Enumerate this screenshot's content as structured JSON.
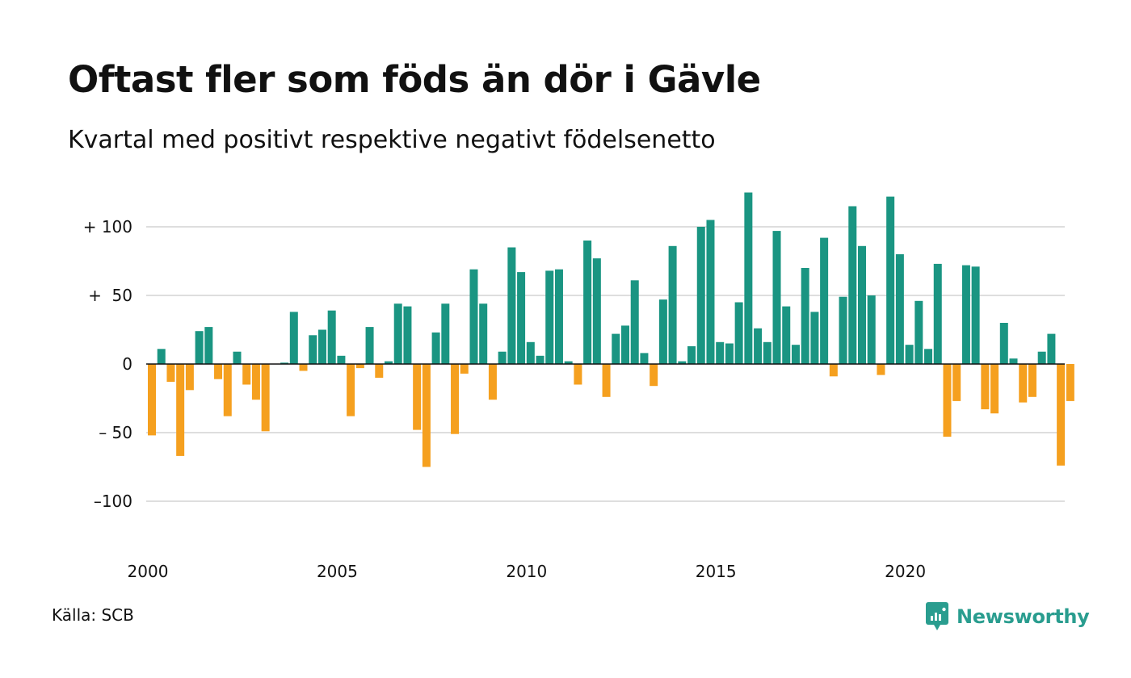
{
  "title": "Oftast fler som föds än dör i Gävle",
  "subtitle": "Kvartal med positivt respektive negativt födelsenetto",
  "source": "Källa: SCB",
  "brand": "Newsworthy",
  "colors": {
    "positive": "#1a9582",
    "negative": "#f5a01f",
    "grid": "#dedede",
    "brand": "#2a9d8f"
  },
  "chart_data": {
    "type": "bar",
    "ylim": [
      -130,
      130
    ],
    "yticks": [
      {
        "value": 100,
        "label": "+ 100"
      },
      {
        "value": 50,
        "label": "+  50"
      },
      {
        "value": 0,
        "label": "0"
      },
      {
        "value": -50,
        "label": "– 50"
      },
      {
        "value": -100,
        "label": "–100"
      }
    ],
    "xticks": [
      "2000",
      "2005",
      "2010",
      "2015",
      "2020"
    ],
    "start_year": 2000,
    "x": [
      "2000 Q1",
      "2000 Q2",
      "2000 Q3",
      "2000 Q4",
      "2001 Q1",
      "2001 Q2",
      "2001 Q3",
      "2001 Q4",
      "2002 Q1",
      "2002 Q2",
      "2002 Q3",
      "2002 Q4",
      "2003 Q1",
      "2003 Q2",
      "2003 Q3",
      "2003 Q4",
      "2004 Q1",
      "2004 Q2",
      "2004 Q3",
      "2004 Q4",
      "2005 Q1",
      "2005 Q2",
      "2005 Q3",
      "2005 Q4",
      "2006 Q1",
      "2006 Q2",
      "2006 Q3",
      "2006 Q4",
      "2007 Q1",
      "2007 Q2",
      "2007 Q3",
      "2007 Q4",
      "2008 Q1",
      "2008 Q2",
      "2008 Q3",
      "2008 Q4",
      "2009 Q1",
      "2009 Q2",
      "2009 Q3",
      "2009 Q4",
      "2010 Q1",
      "2010 Q2",
      "2010 Q3",
      "2010 Q4",
      "2011 Q1",
      "2011 Q2",
      "2011 Q3",
      "2011 Q4",
      "2012 Q1",
      "2012 Q2",
      "2012 Q3",
      "2012 Q4",
      "2013 Q1",
      "2013 Q2",
      "2013 Q3",
      "2013 Q4",
      "2014 Q1",
      "2014 Q2",
      "2014 Q3",
      "2014 Q4",
      "2015 Q1",
      "2015 Q2",
      "2015 Q3",
      "2015 Q4",
      "2016 Q1",
      "2016 Q2",
      "2016 Q3",
      "2016 Q4",
      "2017 Q1",
      "2017 Q2",
      "2017 Q3",
      "2017 Q4",
      "2018 Q1",
      "2018 Q2",
      "2018 Q3",
      "2018 Q4",
      "2019 Q1",
      "2019 Q2",
      "2019 Q3",
      "2019 Q4",
      "2020 Q1",
      "2020 Q2",
      "2020 Q3",
      "2020 Q4",
      "2021 Q1",
      "2021 Q2",
      "2021 Q3",
      "2021 Q4",
      "2022 Q1",
      "2022 Q2",
      "2022 Q3",
      "2022 Q4",
      "2023 Q1",
      "2023 Q2",
      "2023 Q3",
      "2023 Q4",
      "2024 Q1",
      "2024 Q2"
    ],
    "values": [
      -52,
      11,
      -13,
      -67,
      -19,
      24,
      27,
      -11,
      -38,
      9,
      -15,
      -26,
      -49,
      0,
      1,
      38,
      -5,
      21,
      25,
      39,
      6,
      -38,
      -3,
      27,
      -10,
      2,
      44,
      42,
      -48,
      -75,
      23,
      44,
      -51,
      -7,
      69,
      44,
      -26,
      9,
      85,
      67,
      16,
      6,
      68,
      69,
      2,
      -15,
      90,
      77,
      -24,
      22,
      28,
      61,
      8,
      -16,
      47,
      86,
      2,
      13,
      100,
      105,
      16,
      15,
      45,
      125,
      26,
      16,
      97,
      42,
      14,
      70,
      38,
      92,
      -9,
      49,
      115,
      86,
      50,
      -8,
      122,
      80,
      14,
      46,
      11,
      73,
      -53,
      -27,
      72,
      71,
      -33,
      -36,
      30,
      4,
      -28,
      -24,
      9,
      22,
      -74,
      -27
    ]
  }
}
